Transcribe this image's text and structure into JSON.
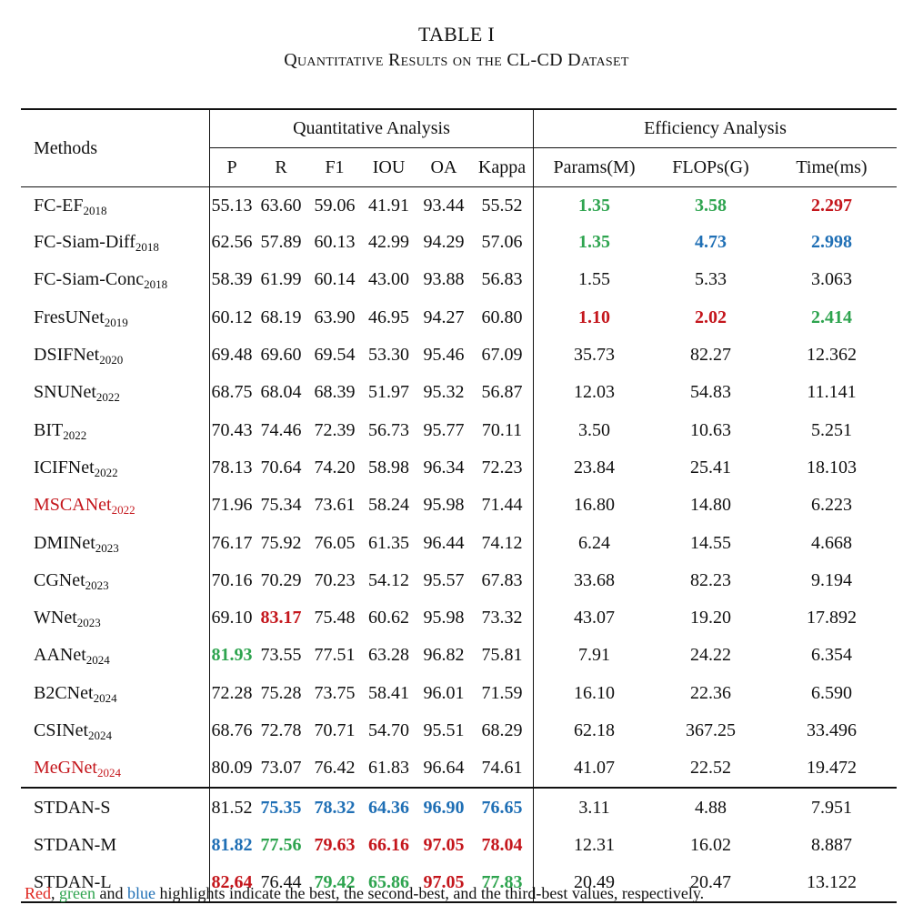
{
  "caption": {
    "title": "TABLE I",
    "subtitle": "Quantitative Results on the CL-CD Dataset"
  },
  "header": {
    "methods": "Methods",
    "group_quant": "Quantitative Analysis",
    "group_eff": "Efficiency Analysis",
    "columns": [
      "P",
      "R",
      "F1",
      "IOU",
      "OA",
      "Kappa",
      "Params(M)",
      "FLOPs(G)",
      "Time(ms)"
    ]
  },
  "rows": [
    {
      "name": "FC-EF",
      "year": "2018",
      "values": [
        "55.13",
        "63.60",
        "59.06",
        "41.91",
        "93.44",
        "55.52",
        "1.35",
        "3.58",
        "2.297"
      ]
    },
    {
      "name": "FC-Siam-Diff",
      "year": "2018",
      "values": [
        "62.56",
        "57.89",
        "60.13",
        "42.99",
        "94.29",
        "57.06",
        "1.35",
        "4.73",
        "2.998"
      ]
    },
    {
      "name": "FC-Siam-Conc",
      "year": "2018",
      "values": [
        "58.39",
        "61.99",
        "60.14",
        "43.00",
        "93.88",
        "56.83",
        "1.55",
        "5.33",
        "3.063"
      ]
    },
    {
      "name": "FresUNet",
      "year": "2019",
      "values": [
        "60.12",
        "68.19",
        "63.90",
        "46.95",
        "94.27",
        "60.80",
        "1.10",
        "2.02",
        "2.414"
      ]
    },
    {
      "name": "DSIFNet",
      "year": "2020",
      "values": [
        "69.48",
        "69.60",
        "69.54",
        "53.30",
        "95.46",
        "67.09",
        "35.73",
        "82.27",
        "12.362"
      ]
    },
    {
      "name": "SNUNet",
      "year": "2022",
      "values": [
        "68.75",
        "68.04",
        "68.39",
        "51.97",
        "95.32",
        "56.87",
        "12.03",
        "54.83",
        "11.141"
      ]
    },
    {
      "name": "BIT",
      "year": "2022",
      "values": [
        "70.43",
        "74.46",
        "72.39",
        "56.73",
        "95.77",
        "70.11",
        "3.50",
        "10.63",
        "5.251"
      ]
    },
    {
      "name": "ICIFNet",
      "year": "2022",
      "values": [
        "78.13",
        "70.64",
        "74.20",
        "58.98",
        "96.34",
        "72.23",
        "23.84",
        "25.41",
        "18.103"
      ]
    },
    {
      "name": "MSCANet",
      "year": "2022",
      "values": [
        "71.96",
        "75.34",
        "73.61",
        "58.24",
        "95.98",
        "71.44",
        "16.80",
        "14.80",
        "6.223"
      ]
    },
    {
      "name": "DMINet",
      "year": "2023",
      "values": [
        "76.17",
        "75.92",
        "76.05",
        "61.35",
        "96.44",
        "74.12",
        "6.24",
        "14.55",
        "4.668"
      ]
    },
    {
      "name": "CGNet",
      "year": "2023",
      "values": [
        "70.16",
        "70.29",
        "70.23",
        "54.12",
        "95.57",
        "67.83",
        "33.68",
        "82.23",
        "9.194"
      ]
    },
    {
      "name": "WNet",
      "year": "2023",
      "values": [
        "69.10",
        "83.17",
        "75.48",
        "60.62",
        "95.98",
        "73.32",
        "43.07",
        "19.20",
        "17.892"
      ]
    },
    {
      "name": "AANet",
      "year": "2024",
      "values": [
        "81.93",
        "73.55",
        "77.51",
        "63.28",
        "96.82",
        "75.81",
        "7.91",
        "24.22",
        "6.354"
      ]
    },
    {
      "name": "B2CNet",
      "year": "2024",
      "values": [
        "72.28",
        "75.28",
        "73.75",
        "58.41",
        "96.01",
        "71.59",
        "16.10",
        "22.36",
        "6.590"
      ]
    },
    {
      "name": "CSINet",
      "year": "2024",
      "values": [
        "68.76",
        "72.78",
        "70.71",
        "54.70",
        "95.51",
        "68.29",
        "62.18",
        "367.25",
        "33.496"
      ]
    },
    {
      "name": "MeGNet",
      "year": "2024",
      "values": [
        "80.09",
        "73.07",
        "76.42",
        "61.83",
        "96.64",
        "74.61",
        "41.07",
        "22.52",
        "19.472"
      ]
    },
    {
      "name": "STDAN-S",
      "year": "",
      "values": [
        "81.52",
        "75.35",
        "78.32",
        "64.36",
        "96.90",
        "76.65",
        "3.11",
        "4.88",
        "7.951"
      ]
    },
    {
      "name": "STDAN-M",
      "year": "",
      "values": [
        "81.82",
        "77.56",
        "79.63",
        "66.16",
        "97.05",
        "78.04",
        "12.31",
        "16.02",
        "8.887"
      ]
    },
    {
      "name": "STDAN-L",
      "year": "",
      "values": [
        "82.64",
        "76.44",
        "79.42",
        "65.86",
        "97.05",
        "77.83",
        "20.49",
        "20.47",
        "13.122"
      ]
    }
  ],
  "highlights": {
    "red": "#c4161c",
    "green": "#2ea44f",
    "blue": "#1f6fb5"
  },
  "note": {
    "red": "Red",
    "comma": ", ",
    "green": "green",
    "and": " and ",
    "blue": "blue",
    "rest": " highlights indicate the best, the second-best, and the third-best values, respectively."
  }
}
